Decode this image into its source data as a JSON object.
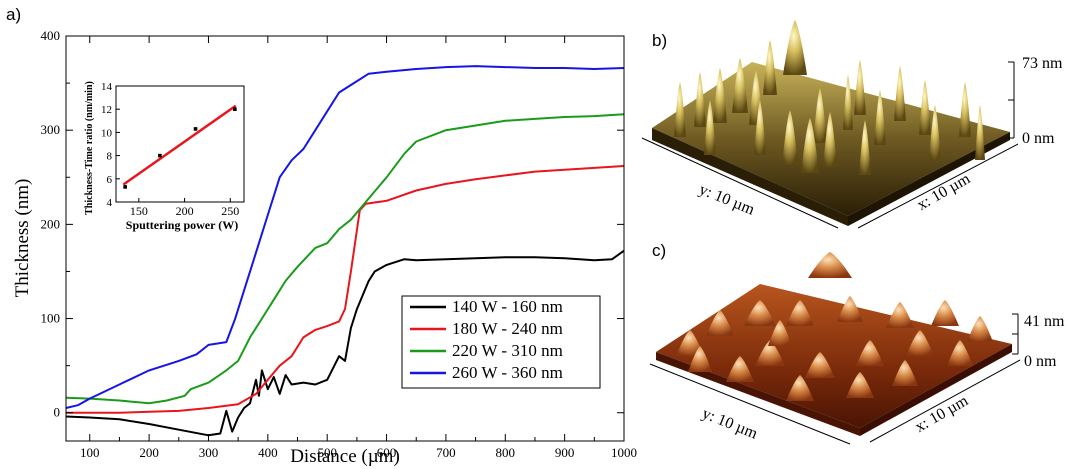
{
  "panel_labels": {
    "a": "a)",
    "b": "b)",
    "c": "c)"
  },
  "chart_data": [
    {
      "type": "line",
      "xlabel": "Distance (µm)",
      "ylabel": "Thickness (nm)",
      "xlim": [
        60,
        1000
      ],
      "ylim": [
        -30,
        400
      ],
      "x_ticks": [
        100,
        200,
        300,
        400,
        500,
        600,
        700,
        800,
        900,
        1000
      ],
      "y_ticks": [
        0,
        100,
        200,
        300,
        400
      ],
      "legend_position": "bottom-right",
      "series": [
        {
          "name": "140 W - 160 nm",
          "color": "#000000",
          "points": [
            [
              60,
              -4
            ],
            [
              100,
              -5
            ],
            [
              150,
              -7
            ],
            [
              200,
              -12
            ],
            [
              250,
              -18
            ],
            [
              300,
              -24
            ],
            [
              320,
              -22
            ],
            [
              330,
              2
            ],
            [
              340,
              -20
            ],
            [
              350,
              -5
            ],
            [
              360,
              5
            ],
            [
              370,
              10
            ],
            [
              380,
              35
            ],
            [
              385,
              18
            ],
            [
              390,
              45
            ],
            [
              400,
              25
            ],
            [
              410,
              38
            ],
            [
              420,
              20
            ],
            [
              430,
              40
            ],
            [
              440,
              30
            ],
            [
              460,
              32
            ],
            [
              480,
              30
            ],
            [
              500,
              35
            ],
            [
              520,
              60
            ],
            [
              530,
              55
            ],
            [
              540,
              90
            ],
            [
              550,
              110
            ],
            [
              560,
              125
            ],
            [
              570,
              140
            ],
            [
              580,
              150
            ],
            [
              600,
              157
            ],
            [
              630,
              163
            ],
            [
              650,
              162
            ],
            [
              700,
              163
            ],
            [
              750,
              164
            ],
            [
              800,
              165
            ],
            [
              850,
              165
            ],
            [
              900,
              164
            ],
            [
              950,
              162
            ],
            [
              980,
              163
            ],
            [
              1000,
              172
            ]
          ]
        },
        {
          "name": "180 W - 240 nm",
          "color": "#e8161c",
          "points": [
            [
              60,
              0
            ],
            [
              100,
              0
            ],
            [
              150,
              0
            ],
            [
              200,
              1
            ],
            [
              250,
              2
            ],
            [
              300,
              5
            ],
            [
              350,
              9
            ],
            [
              380,
              20
            ],
            [
              400,
              35
            ],
            [
              420,
              50
            ],
            [
              440,
              60
            ],
            [
              460,
              80
            ],
            [
              480,
              88
            ],
            [
              500,
              92
            ],
            [
              520,
              97
            ],
            [
              530,
              110
            ],
            [
              540,
              150
            ],
            [
              548,
              185
            ],
            [
              555,
              215
            ],
            [
              565,
              222
            ],
            [
              600,
              225
            ],
            [
              650,
              236
            ],
            [
              700,
              243
            ],
            [
              750,
              248
            ],
            [
              800,
              252
            ],
            [
              850,
              256
            ],
            [
              900,
              258
            ],
            [
              950,
              260
            ],
            [
              1000,
              262
            ]
          ]
        },
        {
          "name": "220 W - 310 nm",
          "color": "#1a9c1a",
          "points": [
            [
              60,
              16
            ],
            [
              100,
              15
            ],
            [
              150,
              13
            ],
            [
              200,
              10
            ],
            [
              230,
              13
            ],
            [
              260,
              18
            ],
            [
              270,
              25
            ],
            [
              300,
              32
            ],
            [
              330,
              45
            ],
            [
              350,
              55
            ],
            [
              370,
              80
            ],
            [
              390,
              100
            ],
            [
              410,
              120
            ],
            [
              430,
              140
            ],
            [
              450,
              155
            ],
            [
              480,
              175
            ],
            [
              500,
              180
            ],
            [
              520,
              195
            ],
            [
              540,
              205
            ],
            [
              560,
              220
            ],
            [
              580,
              235
            ],
            [
              600,
              250
            ],
            [
              630,
              275
            ],
            [
              650,
              288
            ],
            [
              700,
              300
            ],
            [
              750,
              305
            ],
            [
              800,
              310
            ],
            [
              850,
              312
            ],
            [
              900,
              314
            ],
            [
              950,
              315
            ],
            [
              1000,
              317
            ]
          ]
        },
        {
          "name": "260 W - 360 nm",
          "color": "#1515e6",
          "points": [
            [
              60,
              5
            ],
            [
              80,
              8
            ],
            [
              100,
              15
            ],
            [
              150,
              30
            ],
            [
              200,
              45
            ],
            [
              250,
              55
            ],
            [
              280,
              62
            ],
            [
              300,
              72
            ],
            [
              330,
              75
            ],
            [
              345,
              100
            ],
            [
              360,
              130
            ],
            [
              380,
              170
            ],
            [
              400,
              210
            ],
            [
              420,
              250
            ],
            [
              440,
              268
            ],
            [
              460,
              280
            ],
            [
              480,
              300
            ],
            [
              500,
              320
            ],
            [
              520,
              340
            ],
            [
              540,
              348
            ],
            [
              570,
              360
            ],
            [
              600,
              362
            ],
            [
              650,
              365
            ],
            [
              700,
              367
            ],
            [
              750,
              368
            ],
            [
              800,
              367
            ],
            [
              850,
              366
            ],
            [
              900,
              366
            ],
            [
              950,
              365
            ],
            [
              1000,
              366
            ]
          ]
        }
      ]
    },
    {
      "type": "scatter",
      "xlabel": "Sputtering power (W)",
      "ylabel": "Thickness-Time ratio (nm/min)",
      "xlim": [
        125,
        265
      ],
      "ylim": [
        4,
        14
      ],
      "x_ticks": [
        150,
        200,
        250
      ],
      "y_ticks": [
        4,
        6,
        8,
        10,
        12,
        14
      ],
      "series": [
        {
          "color": "#000000",
          "points": [
            [
              135,
              5.3
            ],
            [
              173,
              8.0
            ],
            [
              212,
              10.3
            ],
            [
              255,
              12.0
            ]
          ]
        }
      ],
      "fit_line": {
        "color": "#e8161c",
        "points": [
          [
            133,
            5.5
          ],
          [
            256,
            12.3
          ]
        ]
      }
    }
  ],
  "afm": {
    "b": {
      "y_label": "y: 10 µm",
      "x_label": "x: 10 µm",
      "z_top": "73 nm",
      "z_bottom": "0 nm"
    },
    "c": {
      "y_label": "y: 10 µm",
      "x_label": "x: 10 µm",
      "z_top": "41 nm",
      "z_bottom": "0 nm"
    }
  }
}
